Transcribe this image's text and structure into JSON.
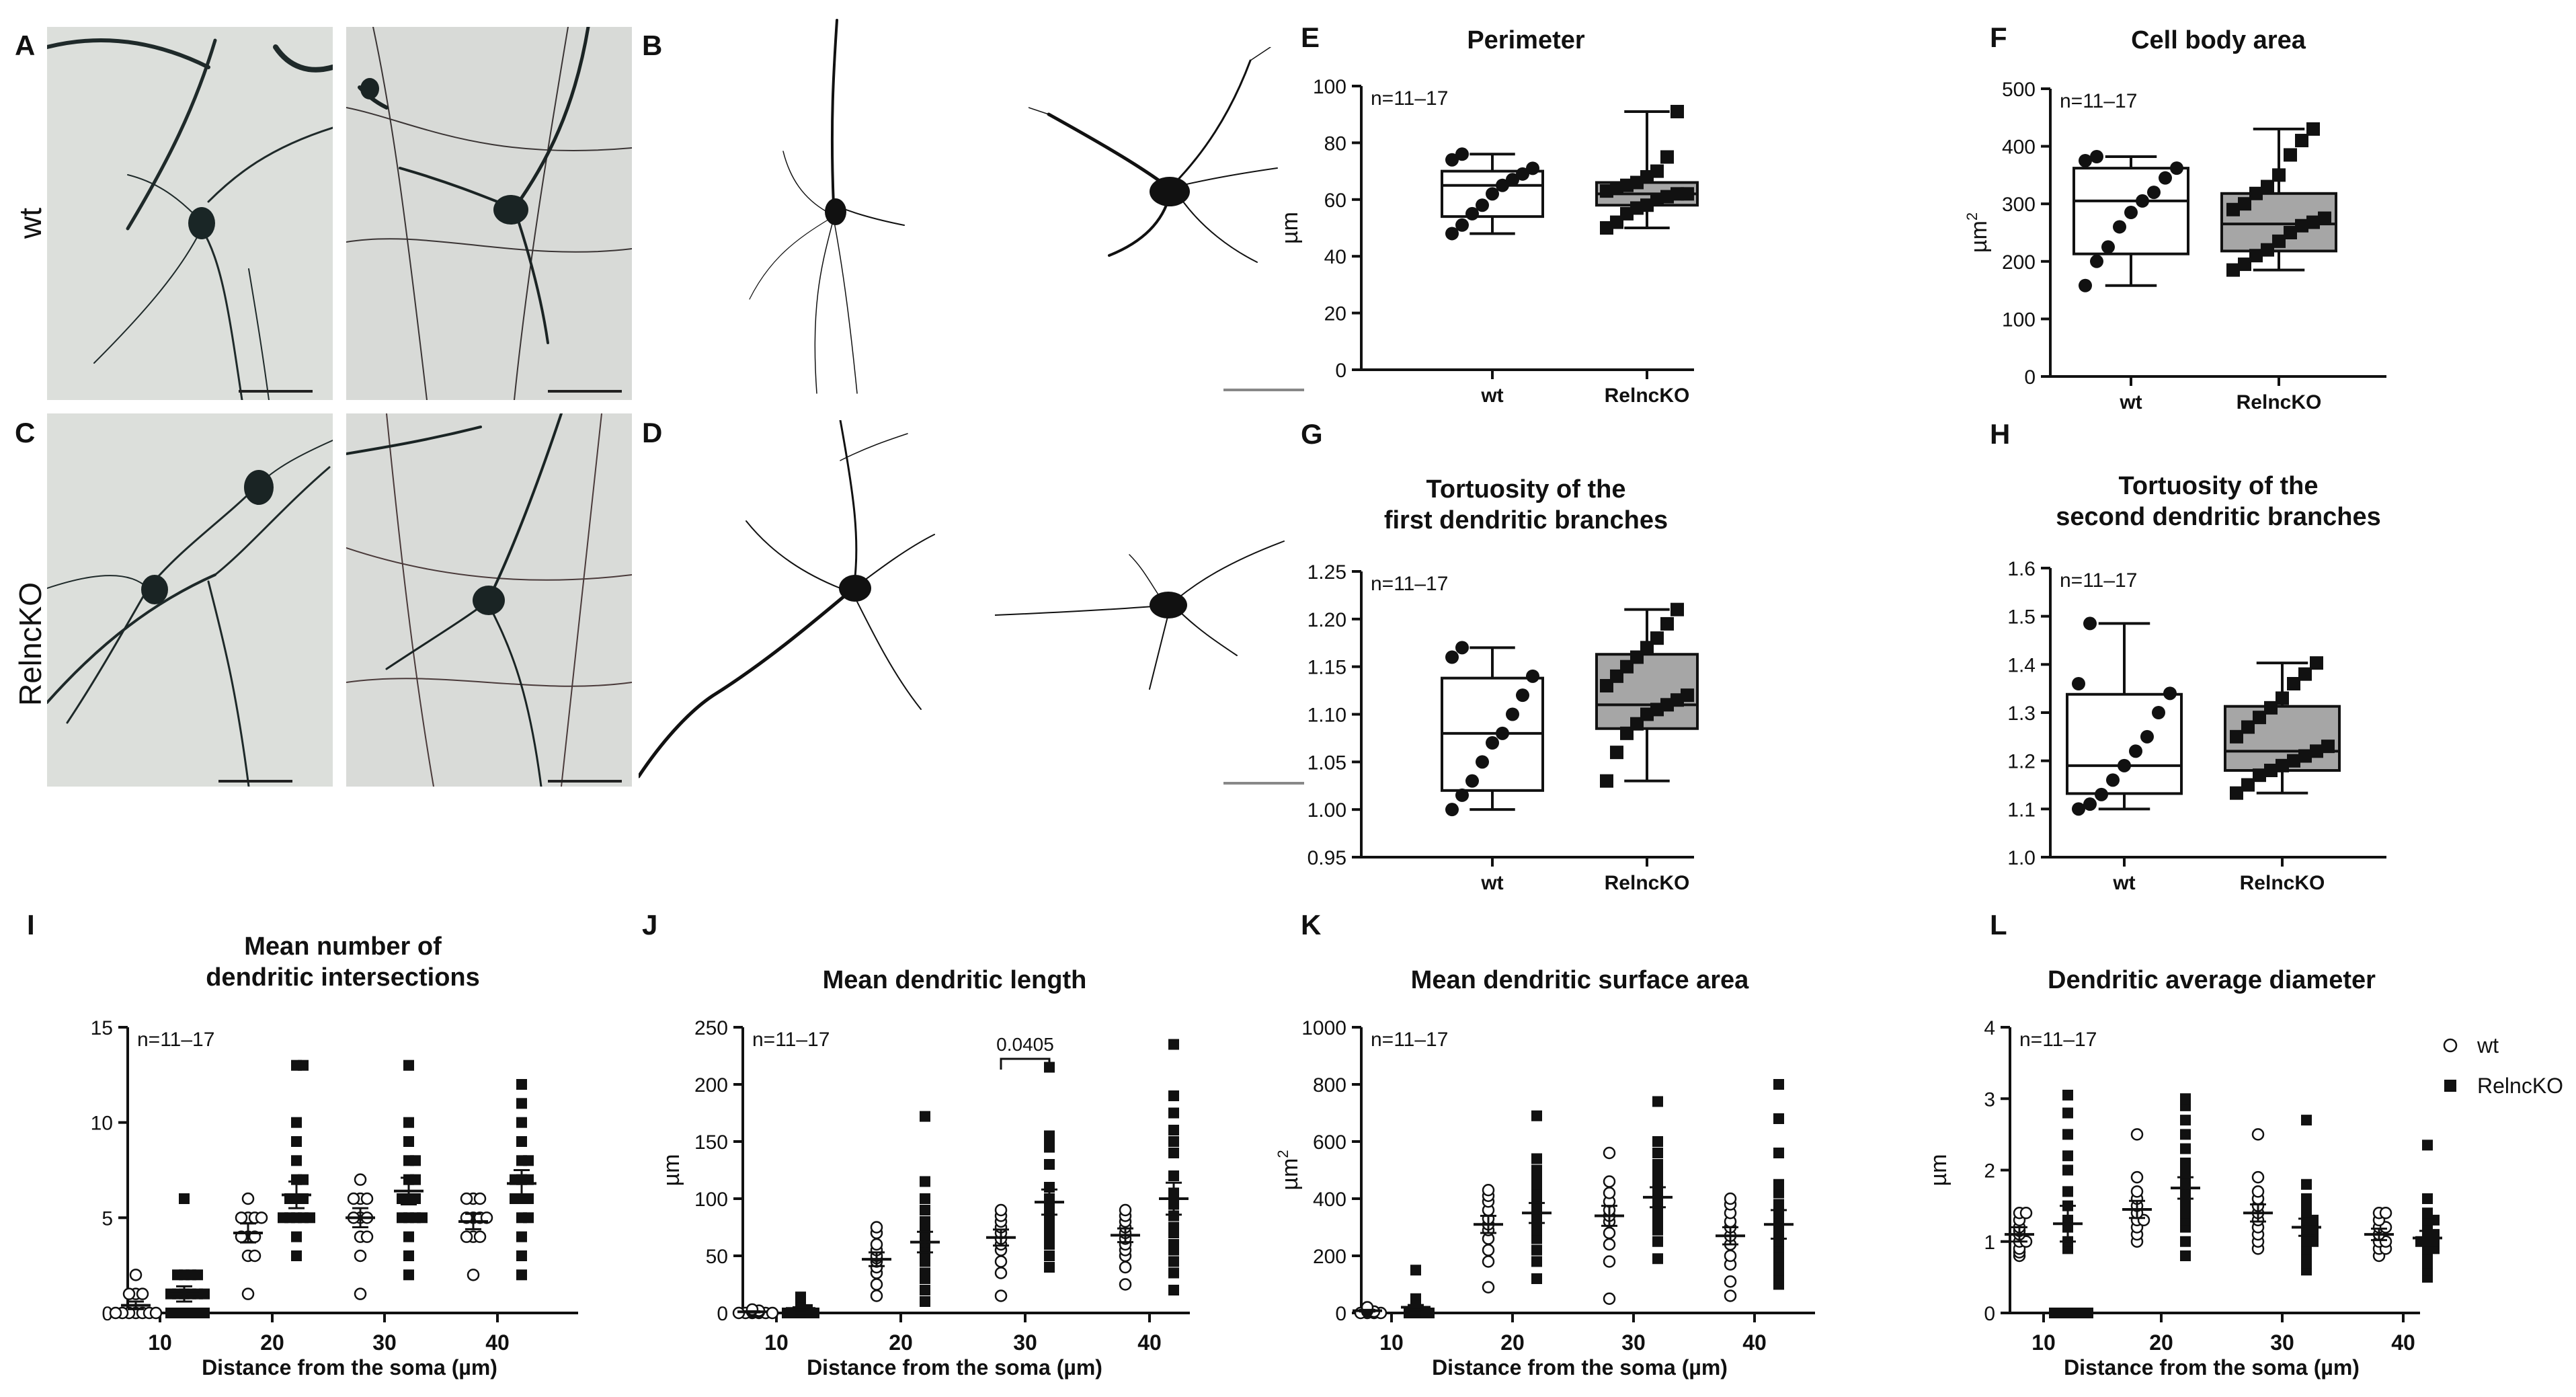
{
  "panel_letters": {
    "A": "A",
    "B": "B",
    "C": "C",
    "D": "D",
    "E": "E",
    "F": "F",
    "G": "G",
    "H": "H",
    "I": "I",
    "J": "J",
    "K": "K",
    "L": "L"
  },
  "row_labels": {
    "wt": "wt",
    "ko": "RelncKO"
  },
  "colors": {
    "box_wt": "#ffffff",
    "box_ko": "#a6a6a6",
    "ink": "#111111",
    "photo_bg": "#d9dcd8"
  },
  "chart_data": [
    {
      "id": "E",
      "type": "box",
      "title": [
        "Perimeter"
      ],
      "ylabel": "µm",
      "ylabel_sup": "",
      "ylim": [
        0,
        100
      ],
      "yticks": [
        0,
        20,
        40,
        60,
        80,
        100
      ],
      "categories": [
        "wt",
        "RelncKO"
      ],
      "n_label": "n=11–17",
      "boxes": [
        {
          "min": 48,
          "q1": 54,
          "median": 65,
          "q3": 70,
          "max": 76,
          "points": [
            48,
            51,
            55,
            58,
            62,
            65,
            67,
            69,
            71,
            74,
            76
          ]
        },
        {
          "min": 50,
          "q1": 58,
          "median": 62,
          "q3": 66,
          "max": 91,
          "points": [
            50,
            52,
            55,
            57,
            58,
            60,
            61,
            62,
            62,
            63,
            64,
            65,
            66,
            68,
            70,
            75,
            91
          ]
        }
      ]
    },
    {
      "id": "F",
      "type": "box",
      "title": [
        "Cell body area"
      ],
      "ylabel": "µm",
      "ylabel_sup": "2",
      "ylim": [
        0,
        500
      ],
      "yticks": [
        0,
        100,
        200,
        300,
        400,
        500
      ],
      "categories": [
        "wt",
        "RelncKO"
      ],
      "n_label": "n=11–17",
      "boxes": [
        {
          "min": 158,
          "q1": 213,
          "median": 305,
          "q3": 362,
          "max": 382,
          "points": [
            158,
            200,
            225,
            260,
            285,
            305,
            320,
            345,
            362,
            375,
            382
          ]
        },
        {
          "min": 185,
          "q1": 218,
          "median": 265,
          "q3": 318,
          "max": 430,
          "points": [
            185,
            195,
            210,
            220,
            235,
            250,
            262,
            268,
            275,
            290,
            300,
            318,
            330,
            350,
            385,
            410,
            430
          ]
        }
      ]
    },
    {
      "id": "G",
      "type": "box",
      "title": [
        "Tortuosity of the",
        "first dendritic branches"
      ],
      "ylabel": "",
      "ylabel_sup": "",
      "ylim": [
        0.95,
        1.25
      ],
      "yticks": [
        0.95,
        1.0,
        1.05,
        1.1,
        1.15,
        1.2,
        1.25
      ],
      "tick_decimals": 2,
      "categories": [
        "wt",
        "RelncKO"
      ],
      "n_label": "n=11–17",
      "boxes": [
        {
          "min": 1.0,
          "q1": 1.02,
          "median": 1.08,
          "q3": 1.138,
          "max": 1.17,
          "points": [
            1.0,
            1.015,
            1.03,
            1.05,
            1.07,
            1.08,
            1.1,
            1.12,
            1.14,
            1.16,
            1.17
          ]
        },
        {
          "min": 1.03,
          "q1": 1.085,
          "median": 1.11,
          "q3": 1.163,
          "max": 1.21,
          "points": [
            1.03,
            1.06,
            1.08,
            1.09,
            1.1,
            1.105,
            1.11,
            1.115,
            1.12,
            1.13,
            1.14,
            1.15,
            1.16,
            1.17,
            1.18,
            1.195,
            1.21
          ]
        }
      ]
    },
    {
      "id": "H",
      "type": "box",
      "title": [
        "Tortuosity of the",
        "second dendritic branches"
      ],
      "ylabel": "",
      "ylabel_sup": "",
      "ylim": [
        1.0,
        1.6
      ],
      "yticks": [
        1.0,
        1.1,
        1.2,
        1.3,
        1.4,
        1.5,
        1.6
      ],
      "tick_decimals": 1,
      "categories": [
        "wt",
        "RelncKO"
      ],
      "n_label": "n=11–17",
      "boxes": [
        {
          "min": 1.1,
          "q1": 1.132,
          "median": 1.19,
          "q3": 1.338,
          "max": 1.485,
          "points": [
            1.1,
            1.11,
            1.13,
            1.16,
            1.19,
            1.22,
            1.25,
            1.3,
            1.34,
            1.36,
            1.485
          ]
        },
        {
          "min": 1.133,
          "q1": 1.18,
          "median": 1.22,
          "q3": 1.313,
          "max": 1.403,
          "points": [
            1.133,
            1.15,
            1.17,
            1.18,
            1.19,
            1.2,
            1.21,
            1.22,
            1.23,
            1.25,
            1.27,
            1.29,
            1.31,
            1.33,
            1.36,
            1.38,
            1.403
          ]
        }
      ]
    },
    {
      "id": "I",
      "type": "scatter",
      "title": [
        "Mean number of",
        "dendritic intersections"
      ],
      "ylabel": "",
      "ylabel_sup": "",
      "xlabel": "Distance from the soma (µm)",
      "categories": [
        "10",
        "20",
        "30",
        "40"
      ],
      "ylim": [
        0,
        15
      ],
      "yticks": [
        0,
        5,
        10,
        15
      ],
      "n_label": "n=11–17",
      "series": [
        {
          "name": "wt",
          "marker": "open-circle",
          "values": [
            [
              0,
              0,
              0,
              0,
              0,
              0,
              0,
              1,
              1,
              1,
              2
            ],
            [
              1,
              3,
              3,
              4,
              4,
              4,
              5,
              5,
              5,
              5,
              6
            ],
            [
              1,
              3,
              4,
              4,
              5,
              5,
              5,
              6,
              6,
              6,
              7
            ],
            [
              2,
              4,
              4,
              4,
              5,
              5,
              5,
              5,
              6,
              6,
              6
            ]
          ],
          "mean": [
            0.4,
            4.2,
            5.0,
            4.8
          ],
          "sem": [
            0.2,
            0.5,
            0.5,
            0.4
          ]
        },
        {
          "name": "RelncKO",
          "marker": "filled-square",
          "values": [
            [
              0,
              0,
              0,
              0,
              0,
              0,
              1,
              1,
              1,
              1,
              1,
              1,
              2,
              2,
              2,
              2,
              6
            ],
            [
              3,
              4,
              5,
              5,
              5,
              5,
              5,
              6,
              6,
              6,
              7,
              7,
              8,
              9,
              10,
              13,
              13
            ],
            [
              2,
              3,
              4,
              5,
              5,
              5,
              5,
              6,
              6,
              6,
              7,
              7,
              8,
              8,
              9,
              10,
              13
            ],
            [
              2,
              3,
              4,
              5,
              5,
              6,
              6,
              6,
              7,
              7,
              7,
              8,
              8,
              9,
              10,
              11,
              12
            ]
          ],
          "mean": [
            1.0,
            6.2,
            6.4,
            6.8
          ],
          "sem": [
            0.4,
            0.7,
            0.7,
            0.7
          ]
        }
      ]
    },
    {
      "id": "J",
      "type": "scatter",
      "title": [
        "Mean dendritic length"
      ],
      "ylabel": "µm",
      "ylabel_sup": "",
      "xlabel": "Distance from the soma (µm)",
      "categories": [
        "10",
        "20",
        "30",
        "40"
      ],
      "ylim": [
        0,
        250
      ],
      "yticks": [
        0,
        50,
        100,
        150,
        200,
        250
      ],
      "n_label": "n=11–17",
      "annotation": {
        "text": "0.0405",
        "group": 2
      },
      "series": [
        {
          "name": "wt",
          "marker": "open-circle",
          "values": [
            [
              0,
              0,
              0,
              0,
              0,
              0,
              1,
              1,
              2,
              2,
              3
            ],
            [
              15,
              25,
              35,
              40,
              45,
              48,
              50,
              55,
              60,
              70,
              75
            ],
            [
              15,
              35,
              45,
              55,
              60,
              65,
              70,
              75,
              80,
              85,
              90
            ],
            [
              25,
              40,
              50,
              55,
              60,
              65,
              70,
              75,
              80,
              85,
              90
            ]
          ],
          "mean": [
            1,
            47,
            66,
            68
          ],
          "sem": [
            0.5,
            6,
            7,
            6
          ]
        },
        {
          "name": "RelncKO",
          "marker": "filled-square",
          "values": [
            [
              0,
              0,
              0,
              0,
              0,
              1,
              2,
              2,
              3,
              3,
              4,
              5,
              6,
              7,
              8,
              10,
              14
            ],
            [
              10,
              20,
              30,
              35,
              45,
              50,
              55,
              60,
              62,
              65,
              70,
              75,
              80,
              90,
              100,
              115,
              172
            ],
            [
              40,
              50,
              60,
              65,
              70,
              75,
              80,
              85,
              90,
              95,
              100,
              110,
              130,
              145,
              150,
              155,
              215
            ],
            [
              20,
              35,
              45,
              55,
              60,
              70,
              75,
              85,
              95,
              105,
              120,
              140,
              150,
              160,
              175,
              190,
              235
            ]
          ],
          "mean": [
            4,
            62,
            97,
            100
          ],
          "sem": [
            1,
            9,
            11,
            14
          ]
        }
      ]
    },
    {
      "id": "K",
      "type": "scatter",
      "title": [
        "Mean dendritic surface area"
      ],
      "ylabel": "µm",
      "ylabel_sup": "2",
      "xlabel": "Distance from the soma (µm)",
      "categories": [
        "10",
        "20",
        "30",
        "40"
      ],
      "ylim": [
        0,
        1000
      ],
      "yticks": [
        0,
        200,
        400,
        600,
        800,
        1000
      ],
      "n_label": "n=11–17",
      "series": [
        {
          "name": "wt",
          "marker": "open-circle",
          "values": [
            [
              0,
              0,
              0,
              0,
              5,
              5,
              8,
              10,
              12,
              15,
              20
            ],
            [
              90,
              180,
              220,
              260,
              290,
              310,
              330,
              360,
              390,
              410,
              430
            ],
            [
              50,
              180,
              240,
              280,
              320,
              340,
              360,
              390,
              420,
              460,
              560
            ],
            [
              60,
              110,
              170,
              200,
              240,
              270,
              300,
              320,
              350,
              380,
              400
            ]
          ],
          "mean": [
            8,
            310,
            340,
            270
          ],
          "sem": [
            3,
            30,
            35,
            30
          ]
        },
        {
          "name": "RelncKO",
          "marker": "filled-square",
          "values": [
            [
              0,
              0,
              0,
              0,
              2,
              5,
              5,
              8,
              10,
              12,
              15,
              20,
              25,
              30,
              40,
              50,
              150
            ],
            [
              120,
              180,
              220,
              260,
              290,
              310,
              330,
              340,
              360,
              380,
              400,
              420,
              450,
              480,
              500,
              540,
              690
            ],
            [
              190,
              250,
              290,
              320,
              340,
              360,
              380,
              400,
              420,
              440,
              460,
              480,
              500,
              520,
              560,
              600,
              740
            ],
            [
              100,
              130,
              150,
              180,
              200,
              230,
              250,
              280,
              300,
              320,
              350,
              380,
              420,
              450,
              560,
              680,
              800
            ]
          ],
          "mean": [
            20,
            350,
            405,
            310
          ],
          "sem": [
            8,
            35,
            35,
            50
          ]
        }
      ]
    },
    {
      "id": "L",
      "type": "scatter",
      "title": [
        "Dendritic average diameter"
      ],
      "ylabel": "µm",
      "ylabel_sup": "",
      "xlabel": "Distance from the soma (µm)",
      "categories": [
        "10",
        "20",
        "30",
        "40"
      ],
      "ylim": [
        0,
        4
      ],
      "yticks": [
        0,
        1,
        2,
        3,
        4
      ],
      "n_label": "n=11–17",
      "legend": [
        {
          "label": "wt",
          "marker": "open-circle"
        },
        {
          "label": "RelncKO",
          "marker": "filled-square"
        }
      ],
      "series": [
        {
          "name": "wt",
          "marker": "open-circle",
          "values": [
            [
              0.8,
              0.85,
              0.9,
              1.0,
              1.0,
              1.1,
              1.15,
              1.2,
              1.3,
              1.4,
              1.4
            ],
            [
              1.0,
              1.1,
              1.2,
              1.3,
              1.3,
              1.4,
              1.5,
              1.6,
              1.7,
              1.9,
              2.5
            ],
            [
              0.9,
              1.0,
              1.1,
              1.2,
              1.3,
              1.4,
              1.5,
              1.6,
              1.7,
              1.9,
              2.5
            ],
            [
              0.8,
              0.9,
              0.9,
              1.0,
              1.0,
              1.1,
              1.2,
              1.2,
              1.3,
              1.4,
              1.4
            ]
          ],
          "mean": [
            1.1,
            1.45,
            1.4,
            1.1
          ],
          "sem": [
            0.1,
            0.12,
            0.12,
            0.08
          ]
        },
        {
          "name": "RelncKO",
          "marker": "filled-square",
          "values": [
            [
              0,
              0,
              0,
              0,
              0,
              0,
              0.9,
              1.0,
              1.2,
              1.3,
              1.5,
              1.7,
              2.0,
              2.2,
              2.5,
              2.8,
              3.05
            ],
            [
              0.8,
              1.0,
              1.2,
              1.3,
              1.4,
              1.5,
              1.6,
              1.7,
              1.8,
              1.9,
              2.0,
              2.1,
              2.3,
              2.5,
              2.7,
              2.9,
              3.0
            ],
            [
              0.6,
              0.7,
              0.8,
              0.9,
              1.0,
              1.0,
              1.1,
              1.1,
              1.2,
              1.2,
              1.3,
              1.3,
              1.4,
              1.5,
              1.6,
              1.8,
              2.7
            ],
            [
              0.5,
              0.6,
              0.7,
              0.8,
              0.9,
              0.9,
              1.0,
              1.0,
              1.0,
              1.1,
              1.1,
              1.2,
              1.3,
              1.3,
              1.4,
              1.6,
              2.35
            ]
          ],
          "mean": [
            1.25,
            1.75,
            1.2,
            1.05
          ],
          "sem": [
            0.25,
            0.15,
            0.12,
            0.1
          ]
        }
      ]
    }
  ]
}
